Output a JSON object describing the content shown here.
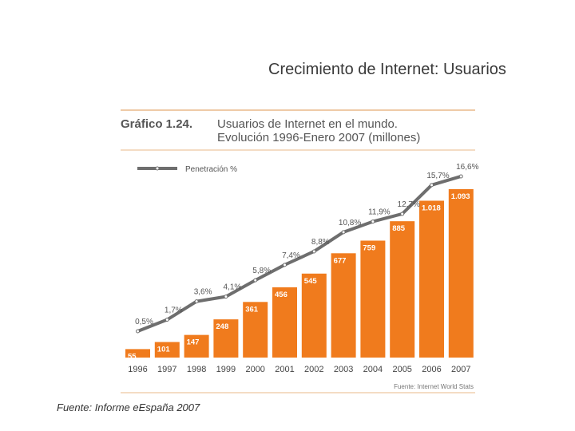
{
  "slide": {
    "title": "Crecimiento de Internet: Usuarios",
    "source": "Fuente: Informe eEspaña 2007"
  },
  "colors": {
    "bar": "#f07b1d",
    "line": "#6e6e6e",
    "rule": "#e9b98a",
    "text": "#555555"
  },
  "chart_data": {
    "type": "bar",
    "figure_label": "Gráfico 1.24.",
    "title_line1": "Usuarios de Internet en el mundo.",
    "title_line2": "Evolución 1996-Enero 2007 (millones)",
    "legend": "Penetración %",
    "categories": [
      "1996",
      "1997",
      "1998",
      "1999",
      "2000",
      "2001",
      "2002",
      "2003",
      "2004",
      "2005",
      "2006",
      "2007"
    ],
    "series": [
      {
        "name": "Usuarios (millones)",
        "type": "bar",
        "values": [
          55,
          101,
          147,
          248,
          361,
          456,
          545,
          677,
          759,
          885,
          1018,
          1093
        ],
        "labels": [
          "55",
          "101",
          "147",
          "248",
          "361",
          "456",
          "545",
          "677",
          "759",
          "885",
          "1.018",
          "1.093"
        ]
      },
      {
        "name": "Penetración %",
        "type": "line",
        "values": [
          0.5,
          1.7,
          3.6,
          4.1,
          5.8,
          7.4,
          8.8,
          10.8,
          11.9,
          12.7,
          15.7,
          16.6
        ],
        "labels": [
          "0,5%",
          "1,7%",
          "3,6%",
          "4,1%",
          "5,8%",
          "7,4%",
          "8,8%",
          "10,8%",
          "11,9%",
          "12,7%",
          "15,7%",
          "16,6%"
        ]
      }
    ],
    "ylim": [
      0,
      1100
    ],
    "source": "Fuente: Internet World Stats"
  }
}
